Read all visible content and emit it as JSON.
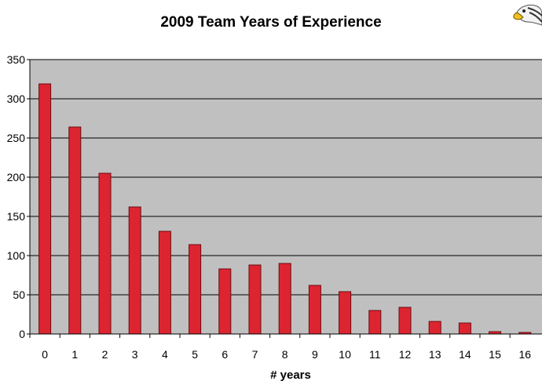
{
  "chart_data": {
    "type": "bar",
    "title": "2009 Team Years of Experience",
    "xlabel": "# years",
    "ylabel": "",
    "categories": [
      "0",
      "1",
      "2",
      "3",
      "4",
      "5",
      "6",
      "7",
      "8",
      "9",
      "10",
      "11",
      "12",
      "13",
      "14",
      "15",
      "16"
    ],
    "values": [
      319,
      264,
      205,
      162,
      131,
      114,
      83,
      88,
      90,
      62,
      54,
      30,
      34,
      16,
      14,
      3,
      2
    ],
    "ylim": [
      0,
      350
    ],
    "yticks": [
      0,
      50,
      100,
      150,
      200,
      250,
      300,
      350
    ],
    "grid": true,
    "legend": "none"
  },
  "colors": {
    "bar_fill": "#dc2530",
    "bar_stroke": "#6b0a10",
    "plot_background": "#c0c0c0",
    "gridline": "#000000"
  },
  "logo": {
    "icon": "eagle-head-icon"
  }
}
